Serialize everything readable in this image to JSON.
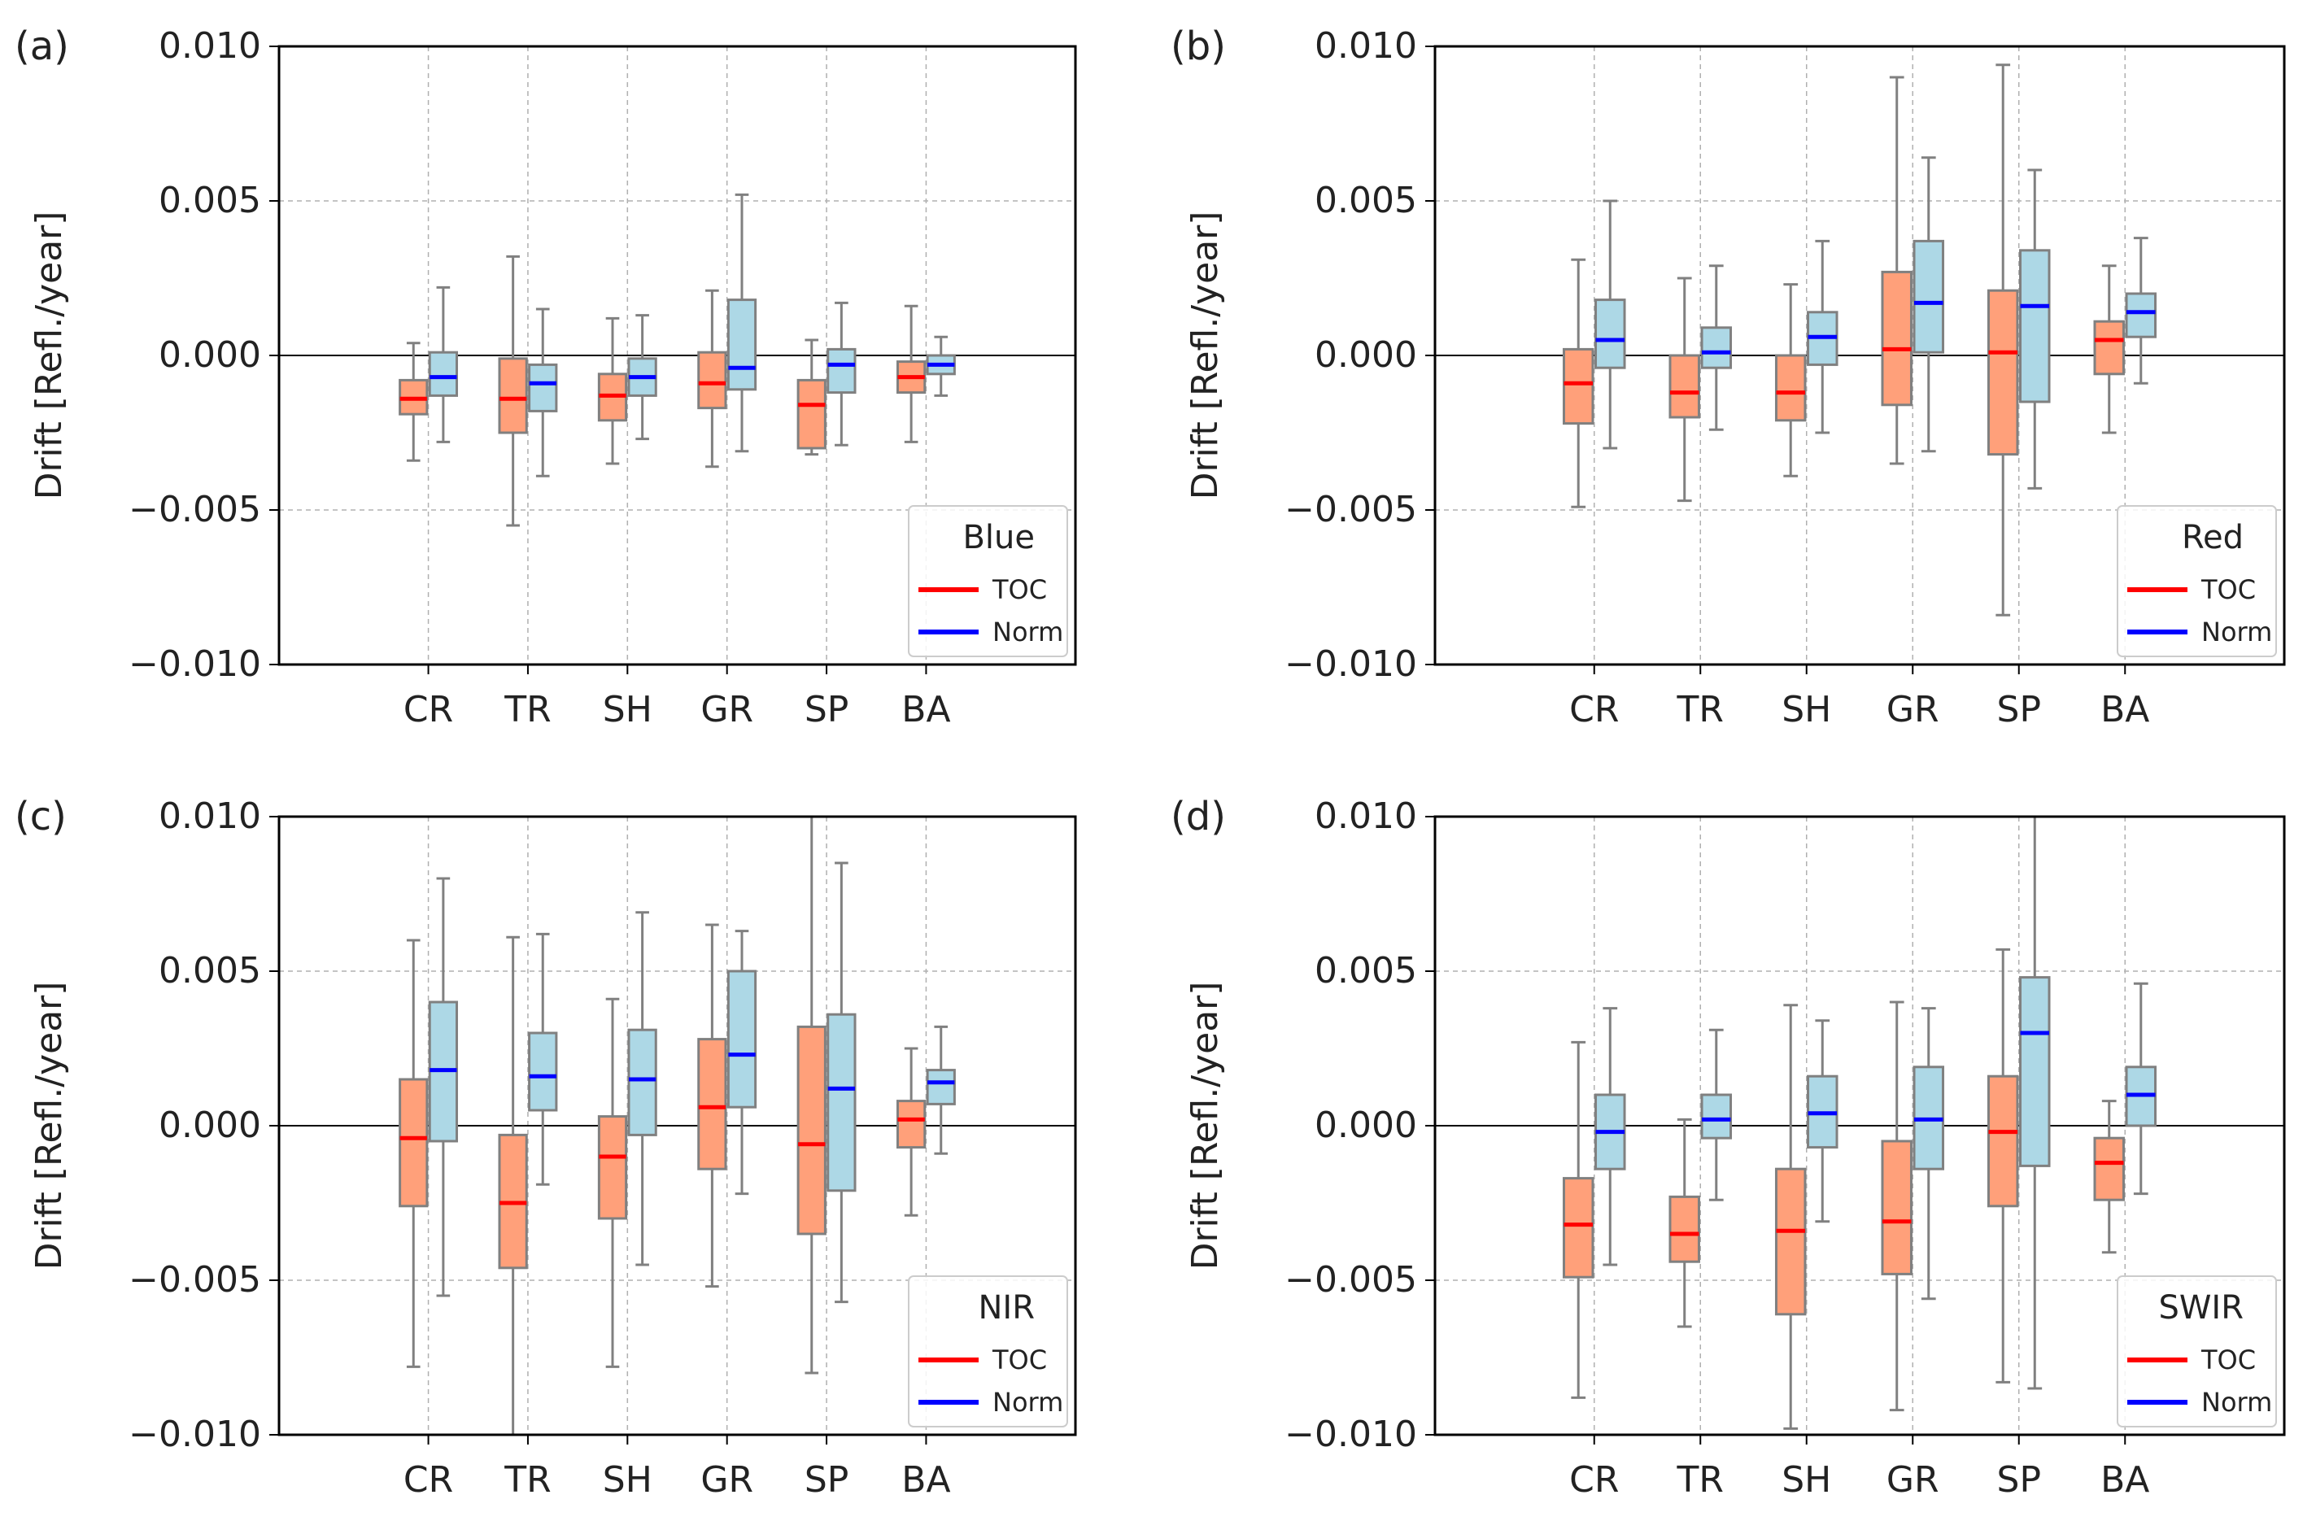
{
  "colors": {
    "toc_box": "#FFA07A",
    "norm_box": "#ADD8E6",
    "toc_median": "#FF0000",
    "norm_median": "#0000FF",
    "whisker": "#808080"
  },
  "chart_data": [
    {
      "type": "box",
      "panel_label": "(a)",
      "legend_title": "Blue",
      "ylabel": "Drift [Refl./year]",
      "ylim": [
        -0.01,
        0.01
      ],
      "yticks": [
        "0.010",
        "0.005",
        "0.000",
        "−0.005",
        "−0.010"
      ],
      "categories": [
        "CR",
        "TR",
        "SH",
        "GR",
        "SP",
        "BA"
      ],
      "series": [
        {
          "name": "TOC",
          "boxes": [
            {
              "whislo": -0.0034,
              "q1": -0.0019,
              "med": -0.0014,
              "q3": -0.0008,
              "whishi": 0.0004
            },
            {
              "whislo": -0.0055,
              "q1": -0.0025,
              "med": -0.0014,
              "q3": -0.0001,
              "whishi": 0.0032
            },
            {
              "whislo": -0.0035,
              "q1": -0.0021,
              "med": -0.0013,
              "q3": -0.0006,
              "whishi": 0.0012
            },
            {
              "whislo": -0.0036,
              "q1": -0.0017,
              "med": -0.0009,
              "q3": 0.0001,
              "whishi": 0.0021
            },
            {
              "whislo": -0.0032,
              "q1": -0.003,
              "med": -0.0016,
              "q3": -0.0008,
              "whishi": 0.0005
            },
            {
              "whislo": -0.0028,
              "q1": -0.0012,
              "med": -0.0007,
              "q3": -0.0002,
              "whishi": 0.0016
            }
          ]
        },
        {
          "name": "Norm",
          "boxes": [
            {
              "whislo": -0.0028,
              "q1": -0.0013,
              "med": -0.0007,
              "q3": 0.0001,
              "whishi": 0.0022
            },
            {
              "whislo": -0.0039,
              "q1": -0.0018,
              "med": -0.0009,
              "q3": -0.0003,
              "whishi": 0.0015
            },
            {
              "whislo": -0.0027,
              "q1": -0.0013,
              "med": -0.0007,
              "q3": -0.0001,
              "whishi": 0.0013
            },
            {
              "whislo": -0.0031,
              "q1": -0.0011,
              "med": -0.0004,
              "q3": 0.0018,
              "whishi": 0.0052
            },
            {
              "whislo": -0.0029,
              "q1": -0.0012,
              "med": -0.0003,
              "q3": 0.0002,
              "whishi": 0.0017
            },
            {
              "whislo": -0.0013,
              "q1": -0.0006,
              "med": -0.0003,
              "q3": 0.0,
              "whishi": 0.0006
            }
          ]
        }
      ]
    },
    {
      "type": "box",
      "panel_label": "(b)",
      "legend_title": "Red",
      "ylabel": "Drift [Refl./year]",
      "ylim": [
        -0.01,
        0.01
      ],
      "yticks": [
        "0.010",
        "0.005",
        "0.000",
        "−0.005",
        "−0.010"
      ],
      "categories": [
        "CR",
        "TR",
        "SH",
        "GR",
        "SP",
        "BA"
      ],
      "series": [
        {
          "name": "TOC",
          "boxes": [
            {
              "whislo": -0.0049,
              "q1": -0.0022,
              "med": -0.0009,
              "q3": 0.0002,
              "whishi": 0.0031
            },
            {
              "whislo": -0.0047,
              "q1": -0.002,
              "med": -0.0012,
              "q3": 0.0,
              "whishi": 0.0025
            },
            {
              "whislo": -0.0039,
              "q1": -0.0021,
              "med": -0.0012,
              "q3": 0.0,
              "whishi": 0.0023
            },
            {
              "whislo": -0.0035,
              "q1": -0.0016,
              "med": 0.0002,
              "q3": 0.0027,
              "whishi": 0.009
            },
            {
              "whislo": -0.0084,
              "q1": -0.0032,
              "med": 0.0001,
              "q3": 0.0021,
              "whishi": 0.0094
            },
            {
              "whislo": -0.0025,
              "q1": -0.0006,
              "med": 0.0005,
              "q3": 0.0011,
              "whishi": 0.0029
            }
          ]
        },
        {
          "name": "Norm",
          "boxes": [
            {
              "whislo": -0.003,
              "q1": -0.0004,
              "med": 0.0005,
              "q3": 0.0018,
              "whishi": 0.005
            },
            {
              "whislo": -0.0024,
              "q1": -0.0004,
              "med": 0.0001,
              "q3": 0.0009,
              "whishi": 0.0029
            },
            {
              "whislo": -0.0025,
              "q1": -0.0003,
              "med": 0.0006,
              "q3": 0.0014,
              "whishi": 0.0037
            },
            {
              "whislo": -0.0031,
              "q1": 0.0001,
              "med": 0.0017,
              "q3": 0.0037,
              "whishi": 0.0064
            },
            {
              "whislo": -0.0043,
              "q1": -0.0015,
              "med": 0.0016,
              "q3": 0.0034,
              "whishi": 0.006
            },
            {
              "whislo": -0.0009,
              "q1": 0.0006,
              "med": 0.0014,
              "q3": 0.002,
              "whishi": 0.0038
            }
          ]
        }
      ]
    },
    {
      "type": "box",
      "panel_label": "(c)",
      "legend_title": "NIR",
      "ylabel": "Drift [Refl./year]",
      "ylim": [
        -0.01,
        0.01
      ],
      "yticks": [
        "0.010",
        "0.005",
        "0.000",
        "−0.005",
        "−0.010"
      ],
      "categories": [
        "CR",
        "TR",
        "SH",
        "GR",
        "SP",
        "BA"
      ],
      "series": [
        {
          "name": "TOC",
          "boxes": [
            {
              "whislo": -0.0078,
              "q1": -0.0026,
              "med": -0.0004,
              "q3": 0.0015,
              "whishi": 0.006
            },
            {
              "whislo": -0.01,
              "q1": -0.0046,
              "med": -0.0025,
              "q3": -0.0003,
              "whishi": 0.0061
            },
            {
              "whislo": -0.0078,
              "q1": -0.003,
              "med": -0.001,
              "q3": 0.0003,
              "whishi": 0.0041
            },
            {
              "whislo": -0.0052,
              "q1": -0.0014,
              "med": 0.0006,
              "q3": 0.0028,
              "whishi": 0.0065
            },
            {
              "whislo": -0.008,
              "q1": -0.0035,
              "med": -0.0006,
              "q3": 0.0032,
              "whishi": 0.01
            },
            {
              "whislo": -0.0029,
              "q1": -0.0007,
              "med": 0.0002,
              "q3": 0.0008,
              "whishi": 0.0025
            }
          ]
        },
        {
          "name": "Norm",
          "boxes": [
            {
              "whislo": -0.0055,
              "q1": -0.0005,
              "med": 0.0018,
              "q3": 0.004,
              "whishi": 0.008
            },
            {
              "whislo": -0.0019,
              "q1": 0.0005,
              "med": 0.0016,
              "q3": 0.003,
              "whishi": 0.0062
            },
            {
              "whislo": -0.0045,
              "q1": -0.0003,
              "med": 0.0015,
              "q3": 0.0031,
              "whishi": 0.0069
            },
            {
              "whislo": -0.0022,
              "q1": 0.0006,
              "med": 0.0023,
              "q3": 0.005,
              "whishi": 0.0063
            },
            {
              "whislo": -0.0057,
              "q1": -0.0021,
              "med": 0.0012,
              "q3": 0.0036,
              "whishi": 0.0085
            },
            {
              "whislo": -0.0009,
              "q1": 0.0007,
              "med": 0.0014,
              "q3": 0.0018,
              "whishi": 0.0032
            }
          ]
        }
      ]
    },
    {
      "type": "box",
      "panel_label": "(d)",
      "legend_title": "SWIR",
      "ylabel": "Drift [Refl./year]",
      "ylim": [
        -0.01,
        0.01
      ],
      "yticks": [
        "0.010",
        "0.005",
        "0.000",
        "−0.005",
        "−0.010"
      ],
      "categories": [
        "CR",
        "TR",
        "SH",
        "GR",
        "SP",
        "BA"
      ],
      "series": [
        {
          "name": "TOC",
          "boxes": [
            {
              "whislo": -0.0088,
              "q1": -0.0049,
              "med": -0.0032,
              "q3": -0.0017,
              "whishi": 0.0027
            },
            {
              "whislo": -0.0065,
              "q1": -0.0044,
              "med": -0.0035,
              "q3": -0.0023,
              "whishi": 0.0002
            },
            {
              "whislo": -0.0098,
              "q1": -0.0061,
              "med": -0.0034,
              "q3": -0.0014,
              "whishi": 0.0039
            },
            {
              "whislo": -0.0092,
              "q1": -0.0048,
              "med": -0.0031,
              "q3": -0.0005,
              "whishi": 0.004
            },
            {
              "whislo": -0.0083,
              "q1": -0.0026,
              "med": -0.0002,
              "q3": 0.0016,
              "whishi": 0.0057
            },
            {
              "whislo": -0.0041,
              "q1": -0.0024,
              "med": -0.0012,
              "q3": -0.0004,
              "whishi": 0.0008
            }
          ]
        },
        {
          "name": "Norm",
          "boxes": [
            {
              "whislo": -0.0045,
              "q1": -0.0014,
              "med": -0.0002,
              "q3": 0.001,
              "whishi": 0.0038
            },
            {
              "whislo": -0.0024,
              "q1": -0.0004,
              "med": 0.0002,
              "q3": 0.001,
              "whishi": 0.0031
            },
            {
              "whislo": -0.0031,
              "q1": -0.0007,
              "med": 0.0004,
              "q3": 0.0016,
              "whishi": 0.0034
            },
            {
              "whislo": -0.0056,
              "q1": -0.0014,
              "med": 0.0002,
              "q3": 0.0019,
              "whishi": 0.0038
            },
            {
              "whislo": -0.0085,
              "q1": -0.0013,
              "med": 0.003,
              "q3": 0.0048,
              "whishi": 0.01
            },
            {
              "whislo": -0.0022,
              "q1": 0.0,
              "med": 0.001,
              "q3": 0.0019,
              "whishi": 0.0046
            }
          ]
        }
      ]
    }
  ]
}
